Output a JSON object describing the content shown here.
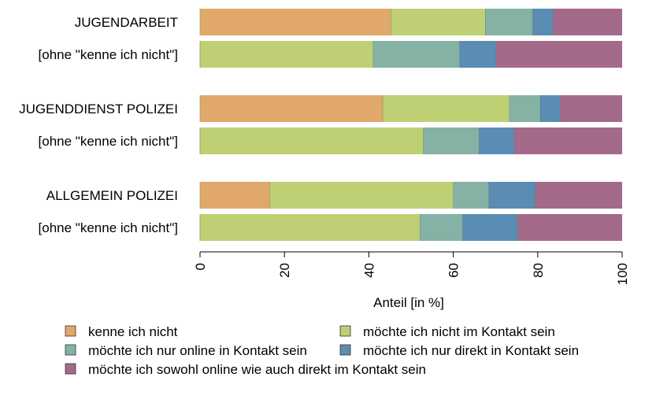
{
  "chart_data": {
    "type": "bar",
    "orientation": "horizontal",
    "stacked": true,
    "categories": [
      "JUGENDARBEIT",
      "[ohne \"kenne ich nicht\"]",
      "JUGENDDIENST POLIZEI",
      "[ohne \"kenne ich nicht\"]",
      "ALLGEMEIN POLIZEI",
      "[ohne \"kenne ich nicht\"]"
    ],
    "series": [
      {
        "name": "kenne ich nicht",
        "color": "#E0A86A",
        "values": [
          45.2,
          0,
          43.3,
          0,
          16.5,
          0
        ]
      },
      {
        "name": "möchte ich nicht im Kontakt sein",
        "color": "#BED073",
        "values": [
          22.4,
          41.0,
          30.0,
          52.9,
          43.5,
          52.1
        ]
      },
      {
        "name": "möchte ich nur online in Kontakt sein",
        "color": "#86B2A6",
        "values": [
          11.2,
          20.5,
          7.3,
          13.2,
          8.4,
          10.1
        ]
      },
      {
        "name": "möchte ich nur direkt in Kontakt sein",
        "color": "#5A8CB4",
        "values": [
          4.8,
          8.6,
          4.7,
          8.3,
          11.0,
          13.0
        ]
      },
      {
        "name": "möchte ich sowohl online wie auch direkt im Kontakt sein",
        "color": "#A46A8A",
        "values": [
          16.4,
          29.9,
          14.7,
          25.6,
          20.6,
          24.8
        ]
      }
    ],
    "xlabel": "Anteil [in %]",
    "ylabel": "",
    "xlim": [
      0,
      100
    ],
    "xticks": [
      "0",
      "20",
      "40",
      "60",
      "80",
      "100"
    ],
    "grid": false,
    "legend_position": "bottom"
  }
}
